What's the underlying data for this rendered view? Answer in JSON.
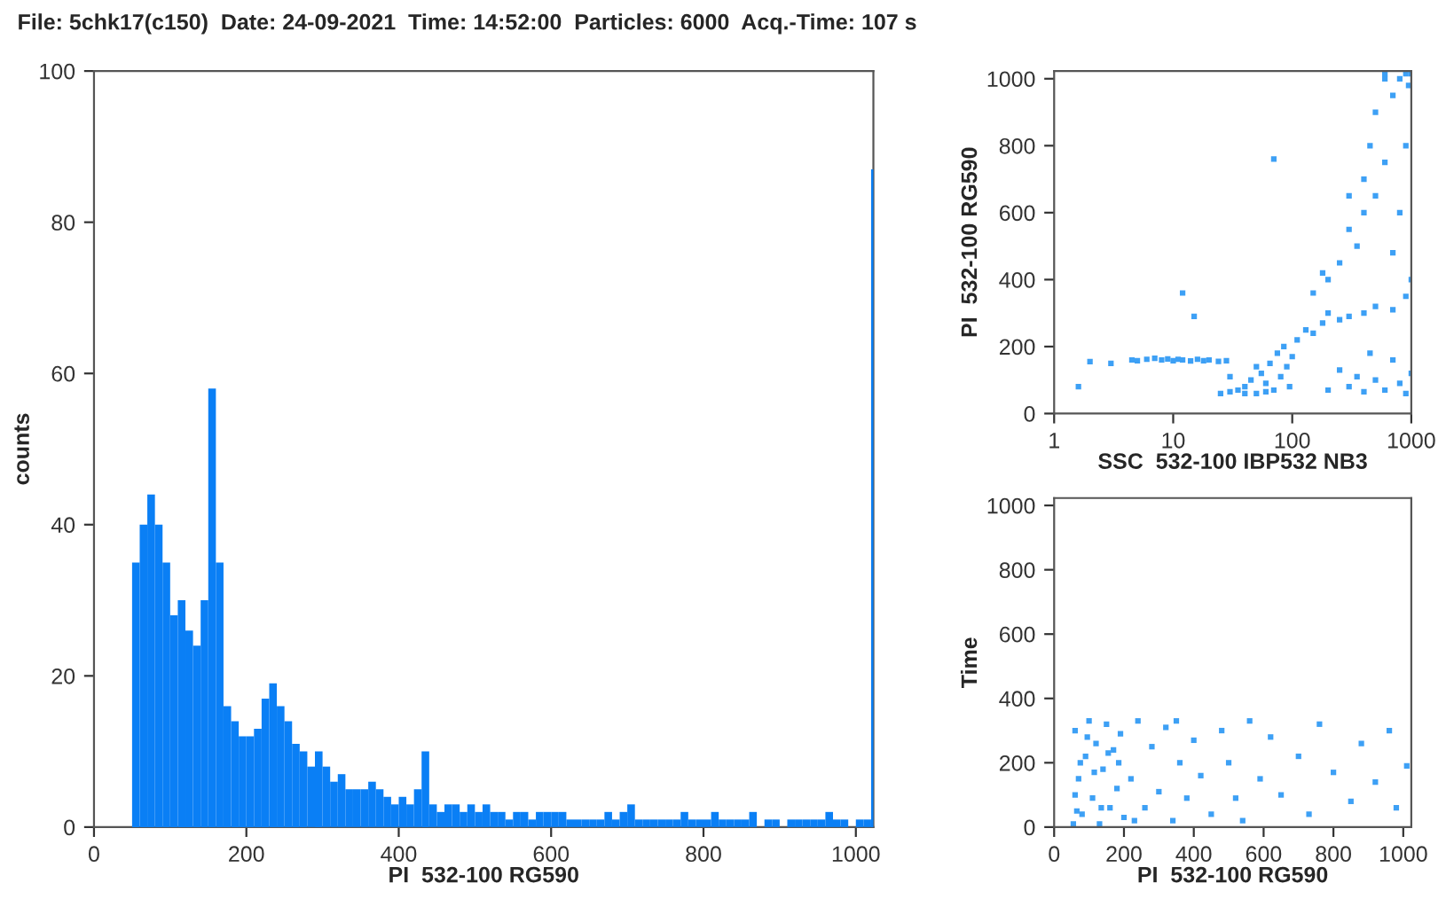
{
  "chart_data": [
    {
      "type": "histogram",
      "title": "File: 5chk17(c150)  Date: 24-09-2021  Time: 14:52:00  Particles: 6000  Acq.-Time: 107 s",
      "xlabel": "PI  532-100 RG590",
      "ylabel": "counts",
      "color": "#0a7ff5",
      "bins": [
        50,
        60,
        70,
        80,
        90,
        100,
        110,
        120,
        130,
        140,
        150,
        160,
        170,
        180,
        190,
        200,
        210,
        220,
        230,
        240,
        250,
        260,
        270,
        280,
        290,
        300,
        310,
        320,
        330,
        340,
        350,
        360,
        370,
        380,
        390,
        400,
        410,
        420,
        430,
        440,
        450,
        460,
        470,
        480,
        490,
        500,
        510,
        520,
        530,
        540,
        550,
        560,
        570,
        580,
        590,
        600,
        610,
        620,
        630,
        640,
        650,
        660,
        670,
        680,
        690,
        700,
        710,
        720,
        730,
        740,
        750,
        760,
        770,
        780,
        790,
        800,
        810,
        820,
        830,
        840,
        850,
        860,
        870,
        880,
        890,
        900,
        910,
        920,
        930,
        940,
        950,
        960,
        970,
        980,
        990,
        1000,
        1010,
        1020,
        1023
      ],
      "values": [
        35,
        40,
        44,
        40,
        35,
        28,
        30,
        26,
        24,
        30,
        58,
        35,
        16,
        14,
        12,
        12,
        13,
        17,
        19,
        16,
        14,
        11,
        10,
        8,
        10,
        8,
        6,
        7,
        5,
        5,
        5,
        6,
        5,
        4,
        3,
        4,
        3,
        5,
        10,
        3,
        2,
        3,
        3,
        2,
        3,
        2,
        3,
        2,
        2,
        1,
        2,
        2,
        1,
        2,
        2,
        2,
        2,
        1,
        1,
        1,
        1,
        1,
        2,
        1,
        2,
        3,
        1,
        1,
        1,
        1,
        1,
        1,
        2,
        1,
        1,
        1,
        2,
        1,
        1,
        1,
        1,
        2,
        0,
        1,
        1,
        0,
        1,
        1,
        1,
        1,
        1,
        2,
        1,
        1,
        0,
        1,
        1,
        87
      ],
      "xlim": [
        0,
        1023
      ],
      "ylim": [
        0,
        100
      ],
      "xticks": [
        0,
        200,
        400,
        600,
        800,
        1000
      ],
      "yticks": [
        0,
        20,
        40,
        60,
        80,
        100
      ],
      "grid": false,
      "legend": false
    },
    {
      "type": "scatter",
      "xlabel": "SSC  532-100 IBP532 NB3",
      "ylabel": "PI  532-100 RG590",
      "color": "#3da0f5",
      "log": "x",
      "x": [
        4.5,
        5,
        6,
        7,
        8,
        9,
        10,
        11,
        12,
        14,
        16,
        18,
        20,
        24,
        28,
        2,
        1.6,
        3,
        12,
        15,
        70,
        25,
        30,
        35,
        40,
        45,
        50,
        55,
        60,
        65,
        70,
        75,
        80,
        85,
        90,
        95,
        100,
        40,
        60,
        50,
        30,
        110,
        130,
        150,
        180,
        200,
        250,
        300,
        400,
        500,
        700,
        900,
        200,
        300,
        400,
        500,
        600,
        800,
        1000,
        250,
        700,
        900,
        450,
        350,
        200,
        250,
        300,
        300,
        350,
        400,
        400,
        450,
        500,
        500,
        600,
        600,
        700,
        800,
        900,
        1000,
        700,
        800,
        1000,
        150,
        180,
        900,
        950,
        600
      ],
      "values": [
        160,
        158,
        162,
        165,
        160,
        163,
        158,
        162,
        160,
        157,
        162,
        158,
        160,
        156,
        158,
        155,
        80,
        150,
        360,
        290,
        760,
        60,
        65,
        70,
        80,
        100,
        60,
        120,
        90,
        150,
        70,
        180,
        110,
        200,
        140,
        80,
        170,
        60,
        65,
        140,
        110,
        220,
        250,
        240,
        270,
        300,
        280,
        290,
        300,
        320,
        310,
        350,
        70,
        80,
        65,
        100,
        70,
        90,
        120,
        130,
        160,
        60,
        180,
        110,
        400,
        450,
        550,
        650,
        500,
        600,
        700,
        800,
        900,
        650,
        750,
        1000,
        950,
        1000,
        1015,
        1015,
        480,
        600,
        400,
        360,
        420,
        800,
        980,
        1015
      ],
      "xlim": [
        1,
        1000
      ],
      "ylim": [
        0,
        1023
      ],
      "xticks": [
        1,
        10,
        100,
        1000
      ],
      "yticks": [
        0,
        200,
        400,
        600,
        800,
        1000
      ],
      "marker": "square",
      "grid": false,
      "legend": false
    },
    {
      "type": "scatter",
      "xlabel": "PI  532-100 RG590",
      "ylabel": "Time",
      "color": "#3da0f5",
      "x": [
        55,
        60,
        70,
        80,
        90,
        100,
        110,
        120,
        130,
        140,
        150,
        160,
        170,
        180,
        190,
        200,
        60,
        75,
        95,
        115,
        135,
        155,
        185,
        65,
        220,
        240,
        260,
        280,
        300,
        320,
        340,
        360,
        380,
        400,
        230,
        350,
        420,
        450,
        480,
        500,
        520,
        560,
        590,
        540,
        620,
        650,
        700,
        730,
        760,
        800,
        850,
        880,
        920,
        960,
        1010,
        980
      ],
      "values": [
        10,
        300,
        150,
        40,
        220,
        330,
        90,
        260,
        10,
        180,
        320,
        60,
        240,
        120,
        290,
        30,
        100,
        200,
        280,
        170,
        60,
        230,
        200,
        50,
        150,
        330,
        60,
        250,
        110,
        310,
        20,
        200,
        90,
        270,
        20,
        330,
        160,
        40,
        300,
        200,
        90,
        330,
        150,
        20,
        280,
        100,
        220,
        40,
        320,
        170,
        80,
        260,
        140,
        300,
        190,
        60
      ],
      "xlim": [
        0,
        1023
      ],
      "ylim": [
        0,
        1023
      ],
      "xticks": [
        0,
        200,
        400,
        600,
        800,
        1000
      ],
      "yticks": [
        0,
        200,
        400,
        600,
        800,
        1000
      ],
      "marker": "square",
      "grid": false,
      "legend": false
    }
  ]
}
